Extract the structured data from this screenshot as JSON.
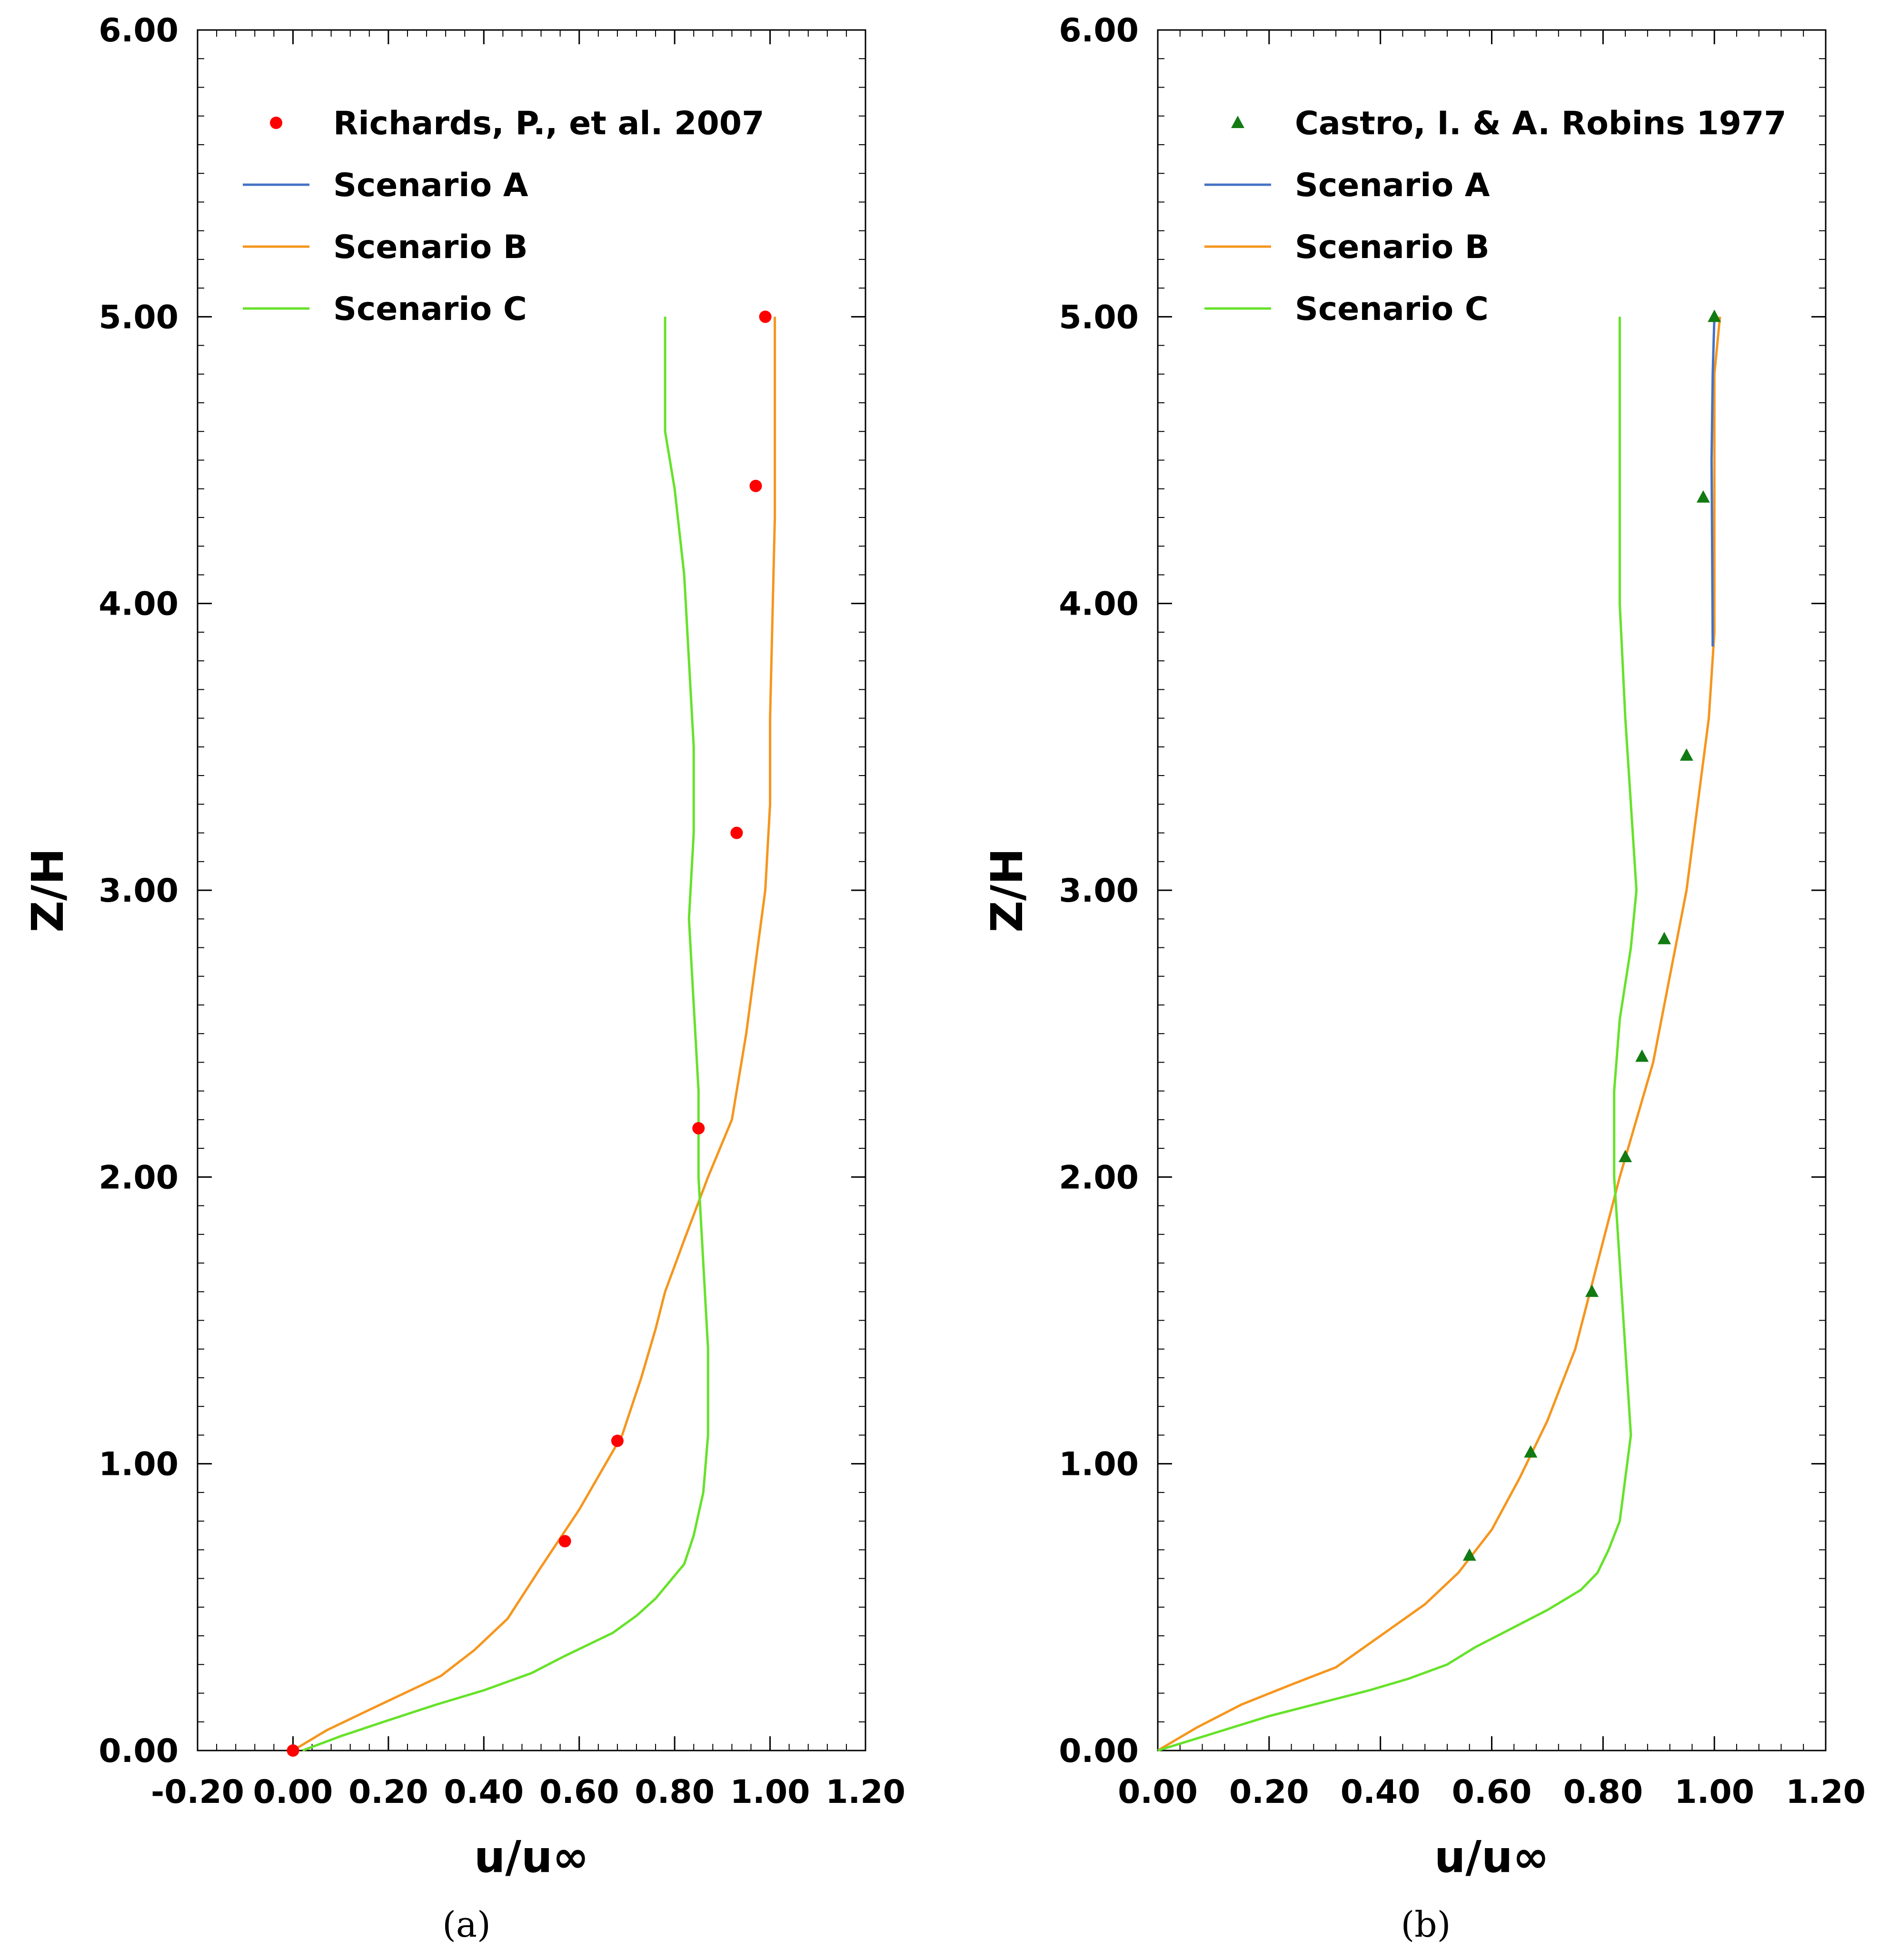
{
  "chart_data": [
    {
      "type": "line",
      "panel": "a",
      "caption": "(a)",
      "xlabel": "u/u∞",
      "ylabel": "Z/H",
      "xlim": [
        -0.2,
        1.2
      ],
      "ylim": [
        0,
        6
      ],
      "xticks": [
        -0.2,
        0.0,
        0.2,
        0.4,
        0.6,
        0.8,
        1.0,
        1.2
      ],
      "xtick_labels": [
        "-0.20",
        "0.00",
        "0.20",
        "0.40",
        "0.60",
        "0.80",
        "1.00",
        "1.20"
      ],
      "yticks": [
        0,
        1,
        2,
        3,
        4,
        5,
        6
      ],
      "ytick_labels": [
        "0.00",
        "1.00",
        "2.00",
        "3.00",
        "4.00",
        "5.00",
        "6.00"
      ],
      "grid": false,
      "legend_position": "top-left",
      "legend": [
        {
          "label": "Richards, P., et al. 2007",
          "marker": "circle",
          "color": "#ff0000"
        },
        {
          "label": "Scenario A",
          "color": "#4472c4"
        },
        {
          "label": "Scenario B",
          "color": "#f5961e"
        },
        {
          "label": "Scenario C",
          "color": "#66e22a"
        }
      ],
      "series": [
        {
          "name": "Scenario A",
          "color": "#4472c4",
          "hidden_under": "Scenario B",
          "x": [],
          "y": []
        },
        {
          "name": "Scenario B",
          "color": "#f5961e",
          "x": [
            0.0,
            0.07,
            0.17,
            0.31,
            0.38,
            0.45,
            0.52,
            0.6,
            0.69,
            0.73,
            0.76,
            0.78,
            0.82,
            0.87,
            0.92,
            0.95,
            0.97,
            0.99,
            1.0,
            1.0,
            1.01,
            1.01
          ],
          "y": [
            0.0,
            0.07,
            0.15,
            0.26,
            0.35,
            0.46,
            0.64,
            0.84,
            1.1,
            1.3,
            1.47,
            1.6,
            1.78,
            2.0,
            2.2,
            2.5,
            2.75,
            3.0,
            3.3,
            3.6,
            4.3,
            5.0
          ]
        },
        {
          "name": "Scenario C",
          "color": "#66e22a",
          "x": [
            0.02,
            0.1,
            0.19,
            0.3,
            0.4,
            0.5,
            0.57,
            0.62,
            0.67,
            0.72,
            0.76,
            0.79,
            0.82,
            0.84,
            0.86,
            0.87,
            0.87,
            0.86,
            0.85,
            0.85,
            0.84,
            0.83,
            0.84,
            0.84,
            0.83,
            0.82,
            0.8,
            0.78,
            0.78
          ],
          "y": [
            0.0,
            0.05,
            0.1,
            0.16,
            0.21,
            0.27,
            0.33,
            0.37,
            0.41,
            0.47,
            0.53,
            0.59,
            0.65,
            0.75,
            0.9,
            1.1,
            1.4,
            1.7,
            2.0,
            2.3,
            2.6,
            2.9,
            3.2,
            3.5,
            3.8,
            4.1,
            4.4,
            4.6,
            5.0
          ]
        }
      ],
      "points": {
        "name": "Richards, P., et al. 2007",
        "color": "#ff0000",
        "marker": "circle",
        "x": [
          0.0,
          0.57,
          0.68,
          0.85,
          0.93,
          0.97,
          0.99
        ],
        "y": [
          0.0,
          0.73,
          1.08,
          2.17,
          3.2,
          4.41,
          5.0
        ]
      }
    },
    {
      "type": "line",
      "panel": "b",
      "caption": "(b)",
      "xlabel": "u/u∞",
      "ylabel": "Z/H",
      "xlim": [
        0.0,
        1.2
      ],
      "ylim": [
        0,
        6
      ],
      "xticks": [
        0.0,
        0.2,
        0.4,
        0.6,
        0.8,
        1.0,
        1.2
      ],
      "xtick_labels": [
        "0.00",
        "0.20",
        "0.40",
        "0.60",
        "0.80",
        "1.00",
        "1.20"
      ],
      "yticks": [
        0,
        1,
        2,
        3,
        4,
        5,
        6
      ],
      "ytick_labels": [
        "0.00",
        "1.00",
        "2.00",
        "3.00",
        "4.00",
        "5.00",
        "6.00"
      ],
      "grid": false,
      "legend_position": "top-left",
      "legend": [
        {
          "label": "Castro, I. & A. Robins 1977",
          "marker": "triangle",
          "color": "#127a12"
        },
        {
          "label": "Scenario A",
          "color": "#4472c4"
        },
        {
          "label": "Scenario B",
          "color": "#f5961e"
        },
        {
          "label": "Scenario C",
          "color": "#66e22a"
        }
      ],
      "series": [
        {
          "name": "Scenario B",
          "color": "#f5961e",
          "x": [
            0.0,
            0.07,
            0.15,
            0.24,
            0.32,
            0.4,
            0.48,
            0.54,
            0.6,
            0.65,
            0.7,
            0.75,
            0.79,
            0.83,
            0.86,
            0.89,
            0.92,
            0.95,
            0.97,
            0.99,
            1.0,
            1.0,
            1.0,
            1.0,
            1.01
          ],
          "y": [
            0.0,
            0.08,
            0.16,
            0.23,
            0.29,
            0.4,
            0.51,
            0.62,
            0.77,
            0.95,
            1.15,
            1.4,
            1.7,
            2.0,
            2.2,
            2.4,
            2.7,
            3.0,
            3.3,
            3.6,
            3.9,
            4.2,
            4.5,
            4.8,
            5.0
          ]
        },
        {
          "name": "Scenario A",
          "color": "#4472c4",
          "x": [
            0.997,
            0.996,
            0.995,
            0.997,
            1.0
          ],
          "y": [
            3.85,
            4.2,
            4.5,
            4.8,
            5.0
          ]
        },
        {
          "name": "Scenario C",
          "color": "#66e22a",
          "x": [
            0.0,
            0.1,
            0.2,
            0.3,
            0.38,
            0.45,
            0.52,
            0.57,
            0.64,
            0.7,
            0.76,
            0.79,
            0.81,
            0.83,
            0.84,
            0.85,
            0.84,
            0.83,
            0.82,
            0.82,
            0.83,
            0.85,
            0.86,
            0.85,
            0.84,
            0.83,
            0.83,
            0.83
          ],
          "y": [
            0.0,
            0.06,
            0.12,
            0.17,
            0.21,
            0.25,
            0.3,
            0.36,
            0.43,
            0.49,
            0.56,
            0.62,
            0.7,
            0.8,
            0.95,
            1.1,
            1.4,
            1.7,
            2.0,
            2.3,
            2.55,
            2.8,
            3.0,
            3.3,
            3.6,
            4.0,
            4.5,
            5.0
          ]
        }
      ],
      "points": {
        "name": "Castro, I. & A. Robins 1977",
        "color": "#127a12",
        "marker": "triangle",
        "x": [
          0.56,
          0.67,
          0.78,
          0.84,
          0.87,
          0.91,
          0.95,
          0.98,
          1.0
        ],
        "y": [
          0.68,
          1.04,
          1.6,
          2.07,
          2.42,
          2.83,
          3.47,
          4.37,
          5.0
        ]
      }
    }
  ]
}
